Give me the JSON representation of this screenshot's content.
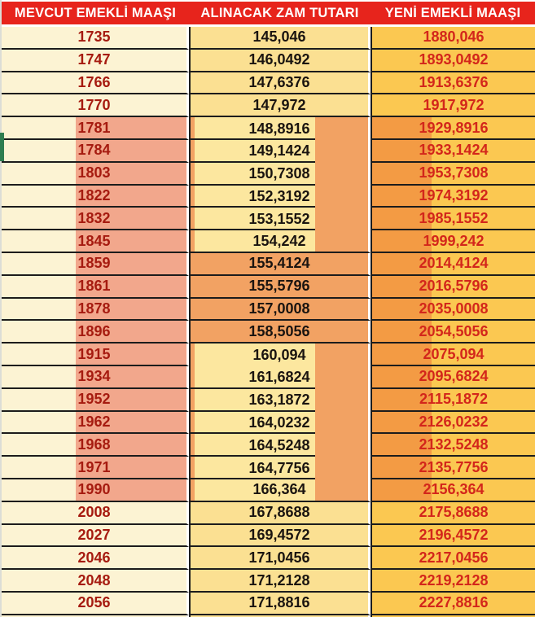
{
  "table": {
    "columns": [
      {
        "label": "MEVCUT EMEKLİ MAAŞI"
      },
      {
        "label": "ALINACAK ZAM TUTARI"
      },
      {
        "label": "YENİ EMEKLİ MAAŞI"
      }
    ],
    "rows": [
      {
        "current": "1735",
        "raise": "145,046",
        "new": "1880,046",
        "highlight": "none"
      },
      {
        "current": "1747",
        "raise": "146,0492",
        "new": "1893,0492",
        "highlight": "none"
      },
      {
        "current": "1766",
        "raise": "147,6376",
        "new": "1913,6376",
        "highlight": "none"
      },
      {
        "current": "1770",
        "raise": "147,972",
        "new": "1917,972",
        "highlight": "none"
      },
      {
        "current": "1781",
        "raise": "148,8916",
        "new": "1929,8916",
        "highlight": "yellow"
      },
      {
        "current": "1784",
        "raise": "149,1424",
        "new": "1933,1424",
        "highlight": "yellow"
      },
      {
        "current": "1803",
        "raise": "150,7308",
        "new": "1953,7308",
        "highlight": "yellow"
      },
      {
        "current": "1822",
        "raise": "152,3192",
        "new": "1974,3192",
        "highlight": "yellow"
      },
      {
        "current": "1832",
        "raise": "153,1552",
        "new": "1985,1552",
        "highlight": "yellow"
      },
      {
        "current": "1845",
        "raise": "154,242",
        "new": "1999,242",
        "highlight": "yellow"
      },
      {
        "current": "1859",
        "raise": "155,4124",
        "new": "2014,4124",
        "highlight": "orange"
      },
      {
        "current": "1861",
        "raise": "155,5796",
        "new": "2016,5796",
        "highlight": "orange"
      },
      {
        "current": "1878",
        "raise": "157,0008",
        "new": "2035,0008",
        "highlight": "orange"
      },
      {
        "current": "1896",
        "raise": "158,5056",
        "new": "2054,5056",
        "highlight": "orange"
      },
      {
        "current": "1915",
        "raise": "160,094",
        "new": "2075,094",
        "highlight": "yellow",
        "col2_divider": false
      },
      {
        "current": "1934",
        "raise": "161,6824",
        "new": "2095,6824",
        "highlight": "yellow"
      },
      {
        "current": "1952",
        "raise": "163,1872",
        "new": "2115,1872",
        "highlight": "yellow"
      },
      {
        "current": "1962",
        "raise": "164,0232",
        "new": "2126,0232",
        "highlight": "yellow"
      },
      {
        "current": "1968",
        "raise": "164,5248",
        "new": "2132,5248",
        "highlight": "yellow"
      },
      {
        "current": "1971",
        "raise": "164,7756",
        "new": "2135,7756",
        "highlight": "yellow"
      },
      {
        "current": "1990",
        "raise": "166,364",
        "new": "2156,364",
        "highlight": "yellow"
      },
      {
        "current": "2008",
        "raise": "167,8688",
        "new": "2175,8688",
        "highlight": "none"
      },
      {
        "current": "2027",
        "raise": "169,4572",
        "new": "2196,4572",
        "highlight": "none"
      },
      {
        "current": "2046",
        "raise": "171,0456",
        "new": "2217,0456",
        "highlight": "none"
      },
      {
        "current": "2048",
        "raise": "171,2128",
        "new": "2219,2128",
        "highlight": "none"
      },
      {
        "current": "2056",
        "raise": "171,8816",
        "new": "2227,8816",
        "highlight": "none"
      }
    ]
  },
  "colors": {
    "header_bg": "#E7241C",
    "header_text": "#FFFFFF",
    "col1_bg": "#FCF3D3",
    "col1_text": "#A61B10",
    "col2_bg": "#FBE092",
    "col2_text": "#1A1410",
    "col3_bg": "#FBC851",
    "col3_text": "#D3261B",
    "hl_salmon": "#F2A78C",
    "hl_orange": "#F2A263",
    "hl_overlay": "#FCE79F",
    "hl_dark_orange": "#F39B44",
    "grid": "#1C1C1C",
    "separator": "#FFFFFF",
    "green_marker": "#2E7D4F",
    "edge": "#DCDDD6"
  }
}
